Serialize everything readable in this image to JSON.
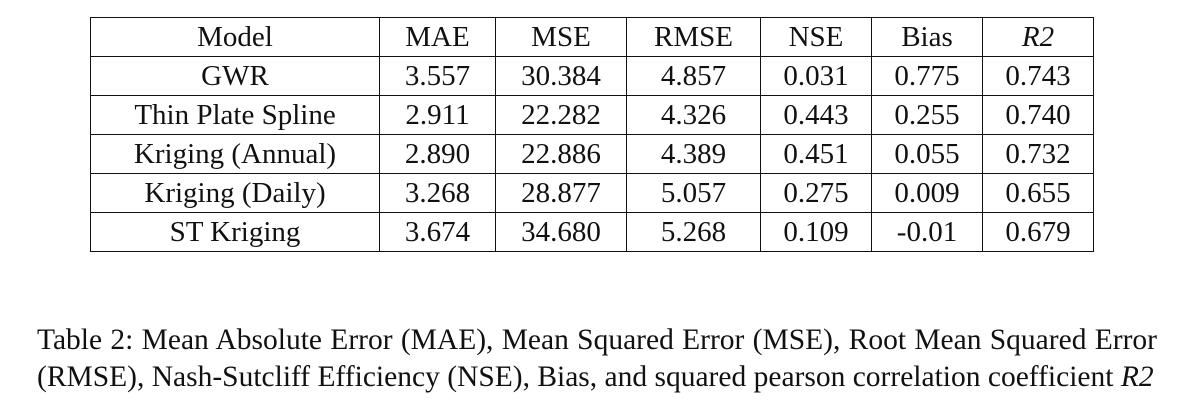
{
  "table": {
    "columns": [
      "Model",
      "MAE",
      "MSE",
      "RMSE",
      "NSE",
      "Bias",
      "R2"
    ],
    "rows": [
      [
        "GWR",
        "3.557",
        "30.384",
        "4.857",
        "0.031",
        "0.775",
        "0.743"
      ],
      [
        "Thin Plate Spline",
        "2.911",
        "22.282",
        "4.326",
        "0.443",
        "0.255",
        "0.740"
      ],
      [
        "Kriging (Annual)",
        "2.890",
        "22.886",
        "4.389",
        "0.451",
        "0.055",
        "0.732"
      ],
      [
        "Kriging (Daily)",
        "3.268",
        "28.877",
        "5.057",
        "0.275",
        "0.009",
        "0.655"
      ],
      [
        "ST Kriging",
        "3.674",
        "34.680",
        "5.268",
        "0.109",
        "-0.01",
        "0.679"
      ]
    ]
  },
  "caption": {
    "label": "Table 2:",
    "text": "Mean Absolute Error (MAE), Mean Squared Error (MSE), Root Mean Squared Error (RMSE), Nash-Sutcliff Efficiency (NSE), Bias, and squared pearson correlation coefficient",
    "symbol": "R2"
  }
}
